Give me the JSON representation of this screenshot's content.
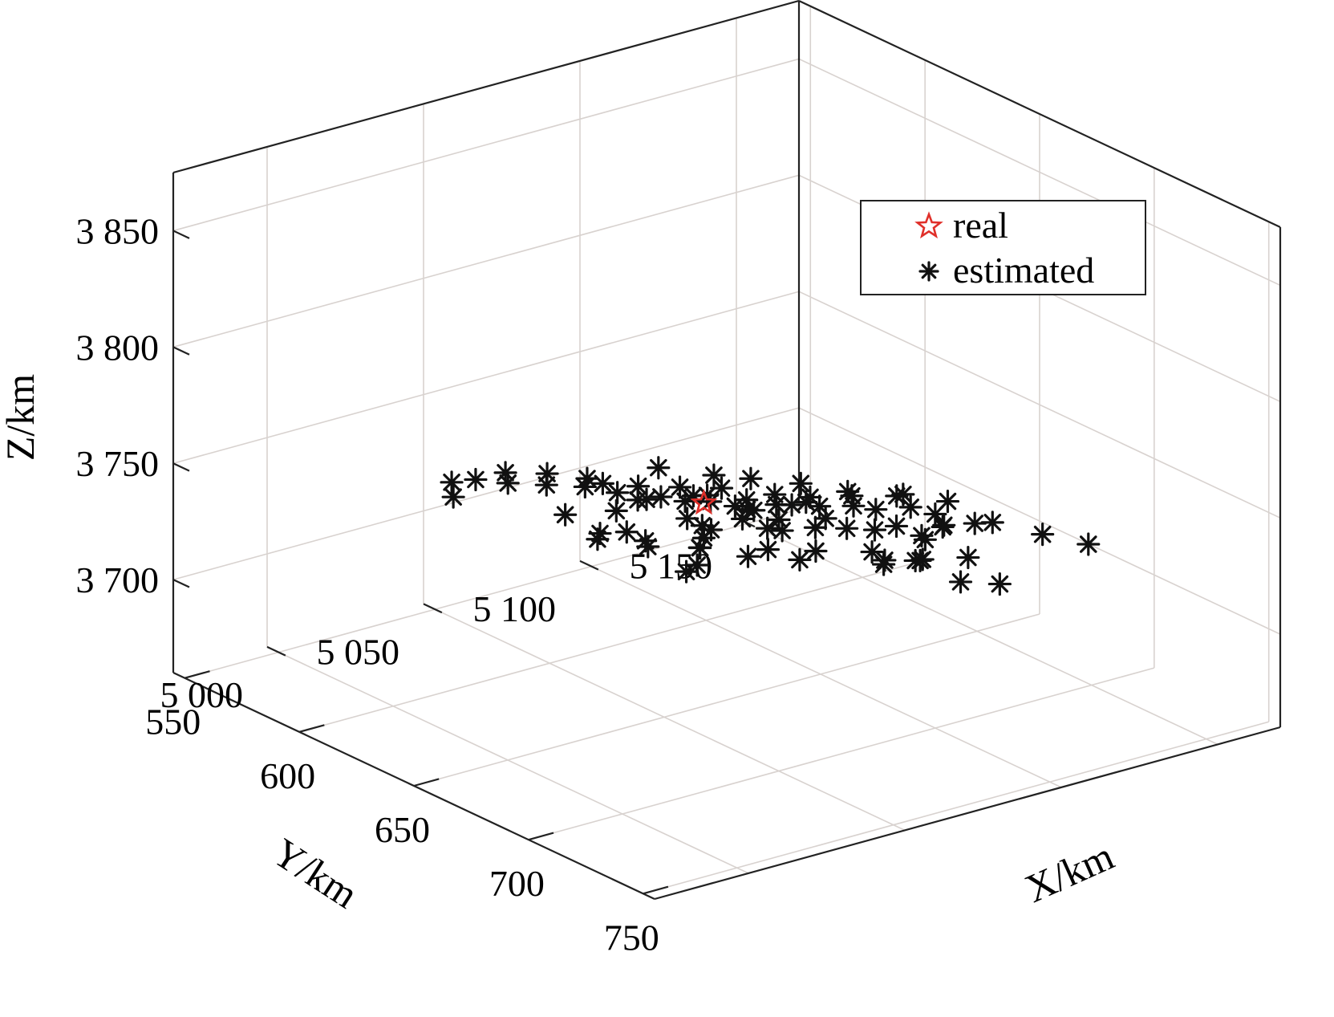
{
  "chart_data": {
    "type": "scatter",
    "projection": "3d",
    "title": "",
    "xlabel": "X/km",
    "ylabel": "Y/km",
    "zlabel": "Z/km",
    "xlim": [
      545,
      755
    ],
    "ylim": [
      4970,
      5170
    ],
    "zlim": [
      3660,
      3875
    ],
    "xticks": [
      550,
      600,
      650,
      700,
      750
    ],
    "yticks": [
      5000,
      5050,
      5100,
      5150
    ],
    "zticks": [
      3700,
      3750,
      3800,
      3850
    ],
    "xtick_labels": [
      "550",
      "600",
      "650",
      "700",
      "750"
    ],
    "ytick_labels": [
      "5 000",
      "5 050",
      "5 100",
      "5 150"
    ],
    "ztick_labels": [
      "3 700",
      "3 750",
      "3 800",
      "3 850"
    ],
    "grid": true,
    "box": true,
    "legend": {
      "position": "top-right",
      "entries": [
        "real",
        "estimated"
      ]
    },
    "colors": {
      "real": "#e0302a",
      "estimated": "#111111",
      "grid": "#d8d2cf",
      "box": "#222222"
    },
    "series": [
      {
        "name": "real",
        "marker": "star",
        "points": [
          {
            "x": 640,
            "y": 5070,
            "z": 3740
          }
        ]
      },
      {
        "name": "estimated",
        "marker": "asterisk",
        "points": [
          {
            "x": 655,
            "y": 5075,
            "z": 3742
          },
          {
            "x": 648,
            "y": 5078,
            "z": 3738
          },
          {
            "x": 662,
            "y": 5082,
            "z": 3745
          },
          {
            "x": 640,
            "y": 5080,
            "z": 3735
          },
          {
            "x": 670,
            "y": 5085,
            "z": 3747
          },
          {
            "x": 632,
            "y": 5078,
            "z": 3734
          },
          {
            "x": 625,
            "y": 5075,
            "z": 3732
          },
          {
            "x": 678,
            "y": 5090,
            "z": 3749
          },
          {
            "x": 615,
            "y": 5070,
            "z": 3730
          },
          {
            "x": 685,
            "y": 5092,
            "z": 3750
          },
          {
            "x": 605,
            "y": 5068,
            "z": 3729
          },
          {
            "x": 595,
            "y": 5065,
            "z": 3728
          },
          {
            "x": 692,
            "y": 5098,
            "z": 3752
          },
          {
            "x": 700,
            "y": 5100,
            "z": 3752
          },
          {
            "x": 585,
            "y": 5060,
            "z": 3726
          },
          {
            "x": 575,
            "y": 5055,
            "z": 3724
          },
          {
            "x": 565,
            "y": 5052,
            "z": 3722
          },
          {
            "x": 560,
            "y": 5048,
            "z": 3720
          },
          {
            "x": 558,
            "y": 5050,
            "z": 3712
          },
          {
            "x": 655,
            "y": 5083,
            "z": 3735
          },
          {
            "x": 640,
            "y": 5070,
            "z": 3725
          },
          {
            "x": 620,
            "y": 5060,
            "z": 3722
          },
          {
            "x": 610,
            "y": 5058,
            "z": 3715
          },
          {
            "x": 630,
            "y": 5072,
            "z": 3728
          },
          {
            "x": 650,
            "y": 5065,
            "z": 3735
          },
          {
            "x": 665,
            "y": 5072,
            "z": 3740
          },
          {
            "x": 675,
            "y": 5080,
            "z": 3742
          },
          {
            "x": 690,
            "y": 5088,
            "z": 3745
          },
          {
            "x": 705,
            "y": 5092,
            "z": 3748
          },
          {
            "x": 712,
            "y": 5094,
            "z": 3755
          },
          {
            "x": 720,
            "y": 5098,
            "z": 3758
          },
          {
            "x": 705,
            "y": 5090,
            "z": 3738
          },
          {
            "x": 715,
            "y": 5085,
            "z": 3745
          },
          {
            "x": 690,
            "y": 5095,
            "z": 3757
          },
          {
            "x": 680,
            "y": 5088,
            "z": 3755
          },
          {
            "x": 670,
            "y": 5082,
            "z": 3752
          },
          {
            "x": 660,
            "y": 5078,
            "z": 3750
          },
          {
            "x": 645,
            "y": 5072,
            "z": 3748
          },
          {
            "x": 635,
            "y": 5066,
            "z": 3746
          },
          {
            "x": 625,
            "y": 5060,
            "z": 3744
          },
          {
            "x": 615,
            "y": 5056,
            "z": 3742
          },
          {
            "x": 645,
            "y": 5065,
            "z": 3725
          },
          {
            "x": 635,
            "y": 5055,
            "z": 3727
          },
          {
            "x": 622,
            "y": 5050,
            "z": 3726
          },
          {
            "x": 652,
            "y": 5060,
            "z": 3730
          },
          {
            "x": 668,
            "y": 5070,
            "z": 3733
          },
          {
            "x": 682,
            "y": 5075,
            "z": 3737
          },
          {
            "x": 697,
            "y": 5082,
            "z": 3741
          },
          {
            "x": 708,
            "y": 5078,
            "z": 3744
          },
          {
            "x": 718,
            "y": 5082,
            "z": 3747
          },
          {
            "x": 728,
            "y": 5090,
            "z": 3750
          },
          {
            "x": 735,
            "y": 5095,
            "z": 3740
          },
          {
            "x": 725,
            "y": 5100,
            "z": 3760
          },
          {
            "x": 698,
            "y": 5085,
            "z": 3735
          },
          {
            "x": 675,
            "y": 5075,
            "z": 3730
          },
          {
            "x": 662,
            "y": 5068,
            "z": 3728
          },
          {
            "x": 648,
            "y": 5062,
            "z": 3720
          },
          {
            "x": 632,
            "y": 5058,
            "z": 3722
          },
          {
            "x": 618,
            "y": 5065,
            "z": 3733
          },
          {
            "x": 600,
            "y": 5062,
            "z": 3735
          },
          {
            "x": 588,
            "y": 5058,
            "z": 3733
          },
          {
            "x": 578,
            "y": 5052,
            "z": 3731
          },
          {
            "x": 640,
            "y": 5085,
            "z": 3745
          },
          {
            "x": 655,
            "y": 5090,
            "z": 3748
          },
          {
            "x": 628,
            "y": 5082,
            "z": 3742
          },
          {
            "x": 612,
            "y": 5076,
            "z": 3740
          },
          {
            "x": 670,
            "y": 5094,
            "z": 3750
          },
          {
            "x": 686,
            "y": 5100,
            "z": 3754
          },
          {
            "x": 700,
            "y": 5104,
            "z": 3756
          },
          {
            "x": 660,
            "y": 5088,
            "z": 3743
          },
          {
            "x": 645,
            "y": 5080,
            "z": 3740
          },
          {
            "x": 630,
            "y": 5074,
            "z": 3737
          },
          {
            "x": 686,
            "y": 5082,
            "z": 3746
          },
          {
            "x": 712,
            "y": 5088,
            "z": 3751
          },
          {
            "x": 740,
            "y": 5105,
            "z": 3760
          },
          {
            "x": 722,
            "y": 5092,
            "z": 3736
          },
          {
            "x": 650,
            "y": 5075,
            "z": 3736
          },
          {
            "x": 642,
            "y": 5068,
            "z": 3732
          },
          {
            "x": 658,
            "y": 5080,
            "z": 3744
          },
          {
            "x": 666,
            "y": 5076,
            "z": 3738
          },
          {
            "x": 674,
            "y": 5084,
            "z": 3744
          },
          {
            "x": 636,
            "y": 5074,
            "z": 3740
          },
          {
            "x": 624,
            "y": 5068,
            "z": 3736
          },
          {
            "x": 646,
            "y": 5060,
            "z": 3717
          },
          {
            "x": 610,
            "y": 5064,
            "z": 3725
          },
          {
            "x": 600,
            "y": 5055,
            "z": 3722
          },
          {
            "x": 694,
            "y": 5092,
            "z": 3747
          },
          {
            "x": 706,
            "y": 5098,
            "z": 3750
          },
          {
            "x": 760,
            "y": 5105,
            "z": 3765
          }
        ]
      }
    ]
  }
}
